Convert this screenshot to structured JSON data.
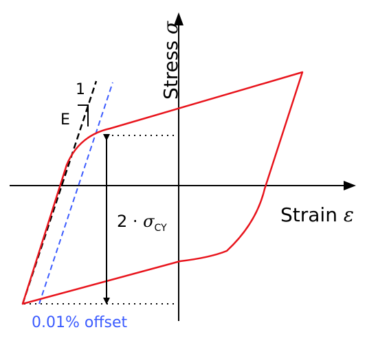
{
  "labels": {
    "stress": "Stress",
    "stress_symbol": "σ",
    "strain": "Strain",
    "strain_symbol": "ε",
    "modulus": "E",
    "slope_unit": "1",
    "two_sigma_prefix": "2 · ",
    "two_sigma_symbol": "σ",
    "two_sigma_sub": "CY",
    "offset": "0.01% offset"
  },
  "colors": {
    "loop": "#e8141c",
    "offset_line": "#3b5bff",
    "axes": "#000000",
    "elastic_line": "#000000"
  }
}
